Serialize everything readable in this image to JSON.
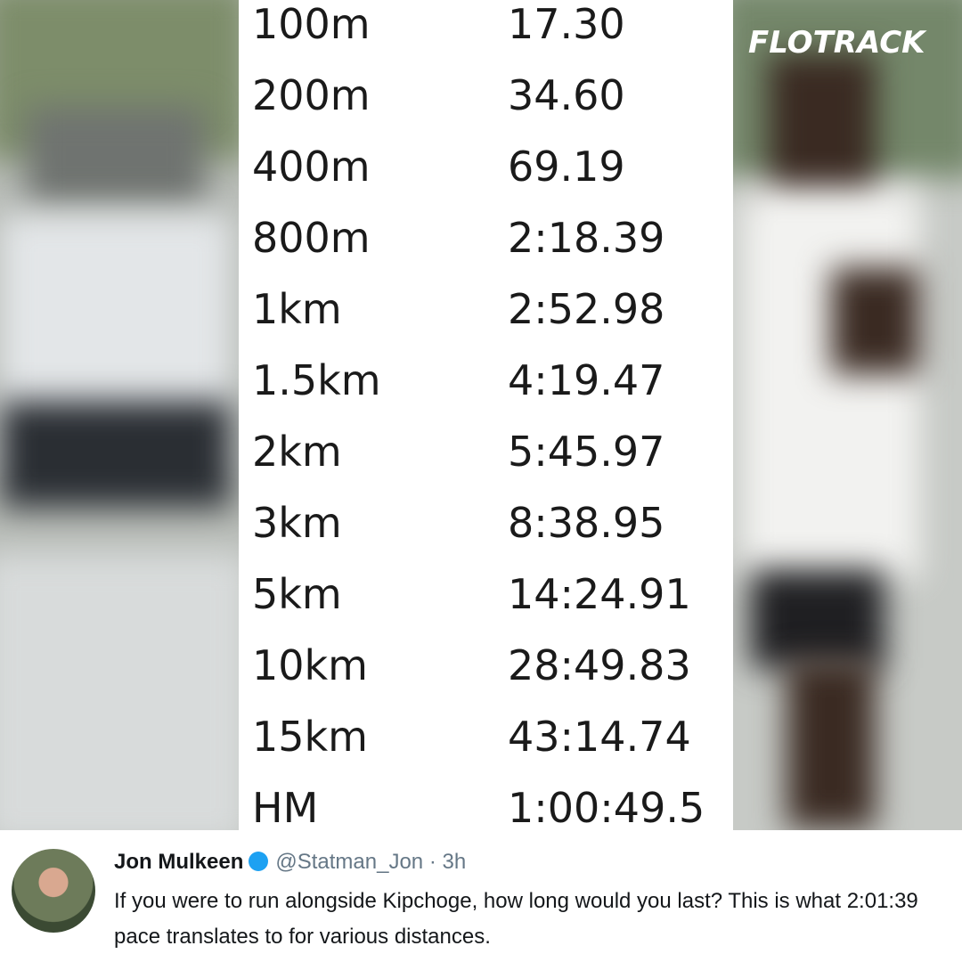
{
  "logo": "FLOTRACK",
  "table": {
    "rows": [
      [
        "100m",
        "17.30"
      ],
      [
        "200m",
        "34.60"
      ],
      [
        "400m",
        "69.19"
      ],
      [
        "800m",
        "2:18.39"
      ],
      [
        "1km",
        "2:52.98"
      ],
      [
        "1.5km",
        "4:19.47"
      ],
      [
        "2km",
        "5:45.97"
      ],
      [
        "3km",
        "8:38.95"
      ],
      [
        "5km",
        "14:24.91"
      ],
      [
        "10km",
        "28:49.83"
      ],
      [
        "15km",
        "43:14.74"
      ],
      [
        "HM",
        "1:00:49.5"
      ]
    ]
  },
  "tweet": {
    "name": "Jon Mulkeen",
    "meta": "@Statman_Jon · 3h",
    "text": "If you were to run alongside Kipchoge, how long would you last? This is what 2:01:39 pace translates to for various distances."
  }
}
